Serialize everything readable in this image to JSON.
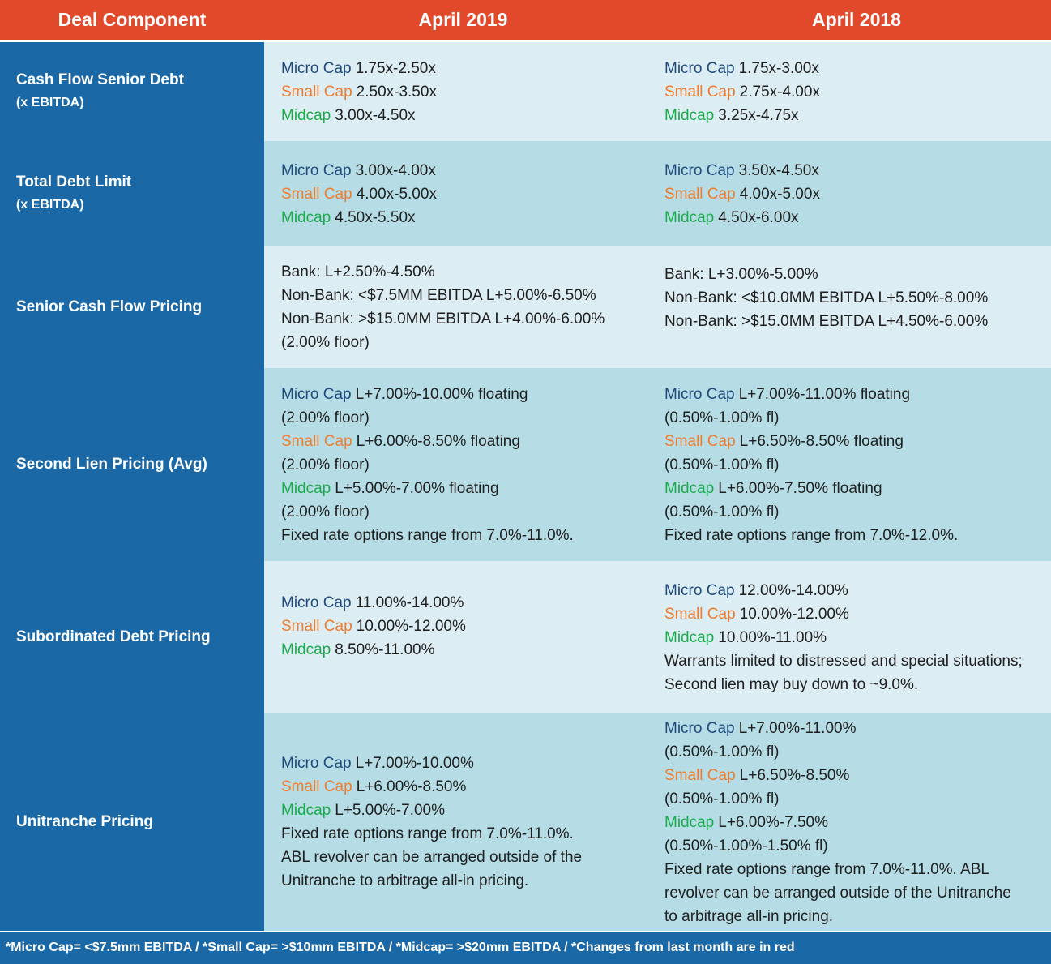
{
  "header": {
    "component": "Deal Component",
    "col2019": "April 2019",
    "col2018": "April 2018"
  },
  "tiers": {
    "micro": "Micro Cap",
    "small": "Small Cap",
    "mid": "Midcap"
  },
  "colors": {
    "header_bg": "#e2492a",
    "left_col_bg": "#1b68a6",
    "row_light": "#dcedf3",
    "row_mid": "#b6dde5",
    "micro": "#1f4a7c",
    "small": "#ef7d2f",
    "mid": "#1aac4a"
  },
  "rows": [
    {
      "label": "Cash Flow Senior Debt",
      "sublabel": "(x EBITDA)",
      "y2019": {
        "micro": "1.75x-2.50x",
        "small": "2.50x-3.50x",
        "mid": "3.00x-4.50x"
      },
      "y2018": {
        "micro": "1.75x-3.00x",
        "small": "2.75x-4.00x",
        "mid": "3.25x-4.75x"
      }
    },
    {
      "label": "Total Debt Limit",
      "sublabel": "(x EBITDA)",
      "y2019": {
        "micro": "3.00x-4.00x",
        "small": "4.00x-5.00x",
        "mid": "4.50x-5.50x"
      },
      "y2018": {
        "micro": "3.50x-4.50x",
        "small": "4.00x-5.00x",
        "mid": "4.50x-6.00x"
      }
    },
    {
      "label": "Senior Cash Flow Pricing",
      "y2019": [
        "Bank: L+2.50%-4.50%",
        "Non-Bank: <$7.5MM EBITDA L+5.00%-6.50%",
        "Non-Bank: >$15.0MM EBITDA L+4.00%-6.00%",
        "(2.00% floor)"
      ],
      "y2018": [
        "Bank: L+3.00%-5.00%",
        "Non-Bank: <$10.0MM EBITDA L+5.50%-8.00%",
        "Non-Bank: >$15.0MM EBITDA L+4.50%-6.00%"
      ]
    },
    {
      "label": "Second Lien Pricing (Avg)",
      "y2019": {
        "micro": "L+7.00%-10.00% floating",
        "micro_note": "(2.00% floor)",
        "small": "L+6.00%-8.50% floating",
        "small_note": "(2.00% floor)",
        "mid": "L+5.00%-7.00% floating",
        "mid_note": "(2.00% floor)",
        "extra": "Fixed rate options range from 7.0%-11.0%."
      },
      "y2018": {
        "micro": "L+7.00%-11.00% floating",
        "micro_note": "(0.50%-1.00% fl)",
        "small": "L+6.50%-8.50% floating",
        "small_note": "(0.50%-1.00% fl)",
        "mid": "L+6.00%-7.50% floating",
        "mid_note": "(0.50%-1.00% fl)",
        "extra": "Fixed rate options range from 7.0%-12.0%."
      }
    },
    {
      "label": "Subordinated Debt Pricing",
      "y2019": {
        "micro": "11.00%-14.00%",
        "small": "10.00%-12.00%",
        "mid": "8.50%-11.00%"
      },
      "y2018": {
        "micro": "12.00%-14.00%",
        "small": "10.00%-12.00%",
        "mid": "10.00%-11.00%",
        "extra1": "Warrants limited to distressed and special situations;",
        "extra2": "Second lien may buy down to ~9.0%."
      }
    },
    {
      "label": "Unitranche Pricing",
      "y2019": {
        "micro": "L+7.00%-10.00%",
        "small": "L+6.00%-8.50%",
        "mid": "L+5.00%-7.00%",
        "extra1": "Fixed rate options range from 7.0%-11.0%.",
        "extra2": "ABL revolver can be arranged outside of the",
        "extra3": "Unitranche to arbitrage all-in pricing."
      },
      "y2018": {
        "micro": "L+7.00%-11.00%",
        "micro_note": "(0.50%-1.00% fl)",
        "small": "L+6.50%-8.50%",
        "small_note": "(0.50%-1.00% fl)",
        "mid": "L+6.00%-7.50%",
        "mid_note": "(0.50%-1.00%-1.50% fl)",
        "extra1": "Fixed rate options range from 7.0%-11.0%. ABL",
        "extra2": "revolver can be arranged outside of the Unitranche",
        "extra3": "to arbitrage all-in pricing."
      }
    }
  ],
  "footer": "*Micro Cap= <$7.5mm EBITDA / *Small Cap= >$10mm EBITDA / *Midcap= >$20mm EBITDA / *Changes from last month are in red"
}
